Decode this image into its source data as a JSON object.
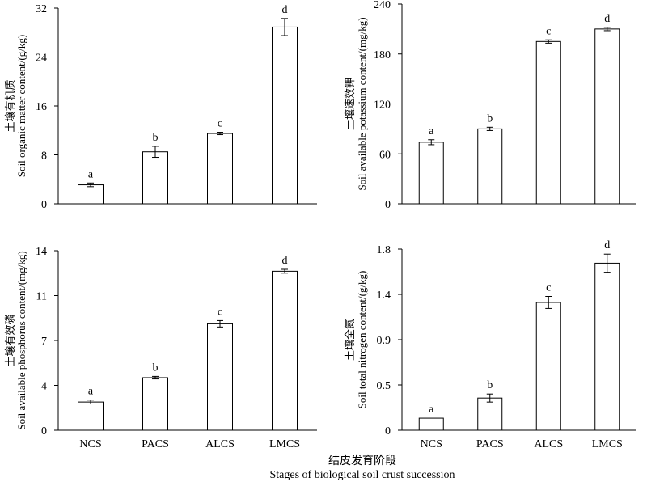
{
  "figure": {
    "xlabel_zh": "结皮发育阶段",
    "xlabel": "Stages of biological soil crust succession",
    "colors": {
      "bar_fill": "#ffffff",
      "bar_edge": "#000000",
      "axis": "#000000"
    }
  },
  "chart_data": [
    {
      "type": "bar",
      "ylabel_zh": "土壤有机质",
      "ylabel": "Soil organic matter content/(g/kg)",
      "categories": [
        "NCS",
        "PACS",
        "ALCS",
        "LMCS"
      ],
      "values": [
        3.1,
        8.5,
        11.5,
        28.9
      ],
      "errors": [
        0.3,
        0.9,
        0.2,
        1.4
      ],
      "significance": [
        "a",
        "b",
        "c",
        "d"
      ],
      "ylim": [
        0,
        32
      ],
      "yticks": [
        0,
        8,
        16,
        24,
        32
      ],
      "ytick_labels": [
        "0",
        "8",
        "16",
        "24",
        "32"
      ],
      "grid": false
    },
    {
      "type": "bar",
      "ylabel_zh": "土壤速效钾",
      "ylabel": "Soil available potassium content/(mg/kg)",
      "categories": [
        "NCS",
        "PACS",
        "ALCS",
        "LMCS"
      ],
      "values": [
        74,
        90,
        195,
        210
      ],
      "errors": [
        3,
        2,
        2,
        2
      ],
      "significance": [
        "a",
        "b",
        "c",
        "d"
      ],
      "ylim": [
        0,
        240
      ],
      "yticks": [
        0,
        60,
        120,
        180,
        240
      ],
      "ytick_labels": [
        "0",
        "60",
        "120",
        "180",
        "240"
      ],
      "grid": false
    },
    {
      "type": "bar",
      "ylabel_zh": "土壤有效磷",
      "ylabel": "Soil available phosphorus content/(mg/kg)",
      "categories": [
        "NCS",
        "PACS",
        "ALCS",
        "LMCS"
      ],
      "values": [
        2.2,
        4.1,
        8.3,
        12.4
      ],
      "errors": [
        0.15,
        0.1,
        0.25,
        0.15
      ],
      "significance": [
        "a",
        "b",
        "c",
        "d"
      ],
      "ylim": [
        0,
        14
      ],
      "yticks": [
        0,
        3.5,
        7,
        10.5,
        14
      ],
      "ytick_labels": [
        "0",
        "4",
        "7",
        "11",
        "14"
      ],
      "grid": false
    },
    {
      "type": "bar",
      "ylabel_zh": "土壤全氮",
      "ylabel": "Soil total nitrogen content/(g/kg)",
      "categories": [
        "NCS",
        "PACS",
        "ALCS",
        "LMCS"
      ],
      "values": [
        0.12,
        0.32,
        1.27,
        1.66
      ],
      "errors": [
        0,
        0.04,
        0.06,
        0.09
      ],
      "significance": [
        "a",
        "b",
        "c",
        "d"
      ],
      "ylim": [
        0,
        1.8
      ],
      "yticks": [
        0,
        0.45,
        0.9,
        1.35,
        1.8
      ],
      "ytick_labels": [
        "0",
        "0.5",
        "0.9",
        "1.4",
        "1.8"
      ],
      "grid": false
    }
  ]
}
